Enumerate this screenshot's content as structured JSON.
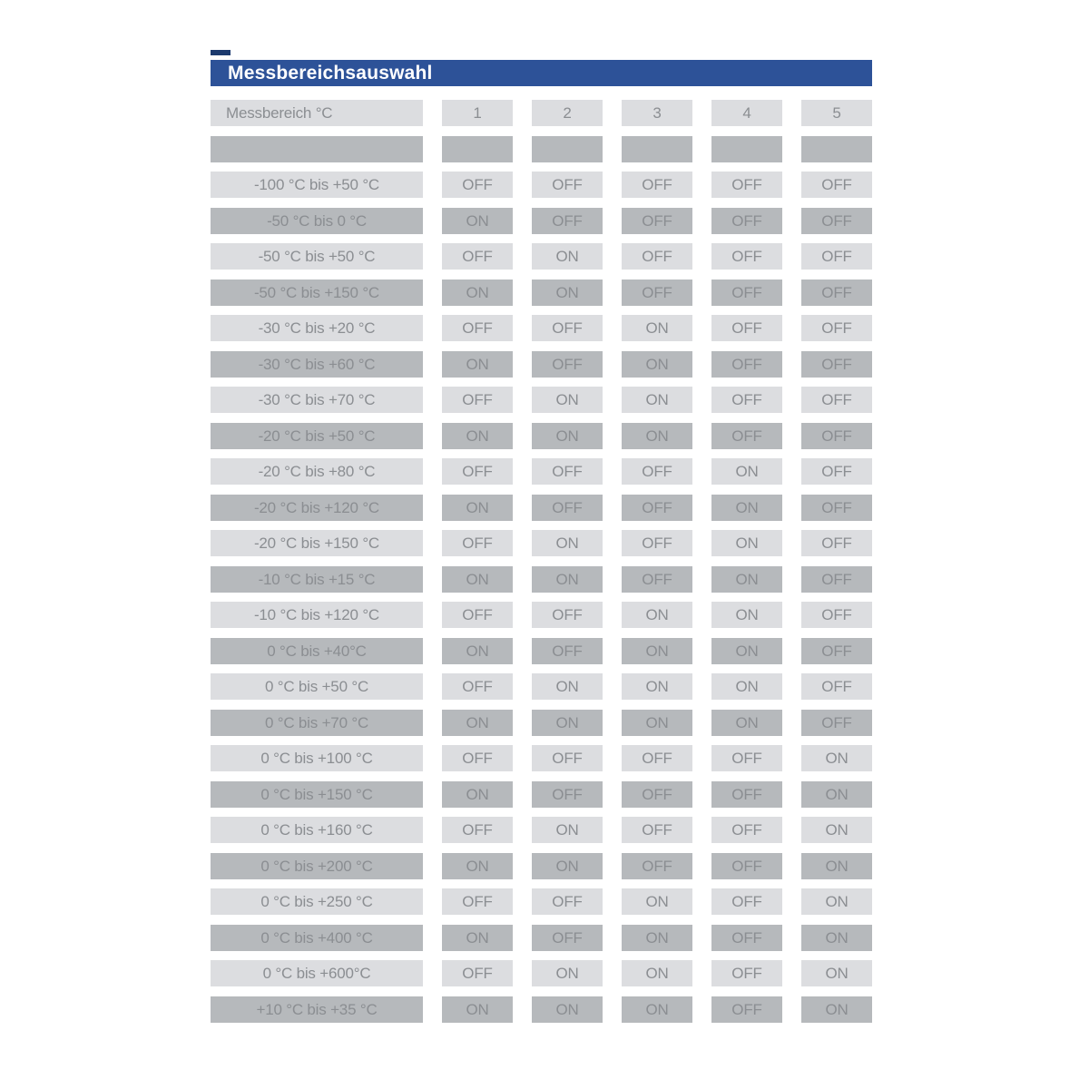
{
  "title": "Messbereichsauswahl",
  "table": {
    "header": {
      "label": "Messbereich °C",
      "columns": [
        "1",
        "2",
        "3",
        "4",
        "5"
      ]
    },
    "rows": [
      {
        "range": "-100 °C bis +50 °C",
        "switches": [
          "OFF",
          "OFF",
          "OFF",
          "OFF",
          "OFF"
        ]
      },
      {
        "range": "-50 °C bis 0 °C",
        "switches": [
          "ON",
          "OFF",
          "OFF",
          "OFF",
          "OFF"
        ]
      },
      {
        "range": "-50 °C bis +50 °C",
        "switches": [
          "OFF",
          "ON",
          "OFF",
          "OFF",
          "OFF"
        ]
      },
      {
        "range": "-50 °C bis +150 °C",
        "switches": [
          "ON",
          "ON",
          "OFF",
          "OFF",
          "OFF"
        ]
      },
      {
        "range": "-30 °C bis +20 °C",
        "switches": [
          "OFF",
          "OFF",
          "ON",
          "OFF",
          "OFF"
        ]
      },
      {
        "range": "-30 °C bis +60 °C",
        "switches": [
          "ON",
          "OFF",
          "ON",
          "OFF",
          "OFF"
        ]
      },
      {
        "range": "-30 °C bis +70 °C",
        "switches": [
          "OFF",
          "ON",
          "ON",
          "OFF",
          "OFF"
        ]
      },
      {
        "range": "-20 °C bis +50 °C",
        "switches": [
          "ON",
          "ON",
          "ON",
          "OFF",
          "OFF"
        ]
      },
      {
        "range": "-20 °C bis +80 °C",
        "switches": [
          "OFF",
          "OFF",
          "OFF",
          "ON",
          "OFF"
        ]
      },
      {
        "range": "-20 °C bis +120 °C",
        "switches": [
          "ON",
          "OFF",
          "OFF",
          "ON",
          "OFF"
        ]
      },
      {
        "range": "-20 °C bis +150 °C",
        "switches": [
          "OFF",
          "ON",
          "OFF",
          "ON",
          "OFF"
        ]
      },
      {
        "range": "-10 °C bis +15 °C",
        "switches": [
          "ON",
          "ON",
          "OFF",
          "ON",
          "OFF"
        ]
      },
      {
        "range": "-10 °C bis +120 °C",
        "switches": [
          "OFF",
          "OFF",
          "ON",
          "ON",
          "OFF"
        ]
      },
      {
        "range": "0 °C bis +40°C",
        "switches": [
          "ON",
          "OFF",
          "ON",
          "ON",
          "OFF"
        ]
      },
      {
        "range": "0 °C bis +50 °C",
        "switches": [
          "OFF",
          "ON",
          "ON",
          "ON",
          "OFF"
        ]
      },
      {
        "range": "0 °C bis +70 °C",
        "switches": [
          "ON",
          "ON",
          "ON",
          "ON",
          "OFF"
        ]
      },
      {
        "range": "0 °C bis +100 °C",
        "switches": [
          "OFF",
          "OFF",
          "OFF",
          "OFF",
          "ON"
        ]
      },
      {
        "range": "0 °C bis +150 °C",
        "switches": [
          "ON",
          "OFF",
          "OFF",
          "OFF",
          "ON"
        ]
      },
      {
        "range": "0 °C bis +160 °C",
        "switches": [
          "OFF",
          "ON",
          "OFF",
          "OFF",
          "ON"
        ]
      },
      {
        "range": "0 °C bis +200 °C",
        "switches": [
          "ON",
          "ON",
          "OFF",
          "OFF",
          "ON"
        ]
      },
      {
        "range": "0 °C bis +250 °C",
        "switches": [
          "OFF",
          "OFF",
          "ON",
          "OFF",
          "ON"
        ]
      },
      {
        "range": "0 °C bis +400 °C",
        "switches": [
          "ON",
          "OFF",
          "ON",
          "OFF",
          "ON"
        ]
      },
      {
        "range": "0 °C bis +600°C",
        "switches": [
          "OFF",
          "ON",
          "ON",
          "OFF",
          "ON"
        ]
      },
      {
        "range": "+10 °C bis +35 °C",
        "switches": [
          "ON",
          "ON",
          "ON",
          "OFF",
          "ON"
        ]
      }
    ]
  },
  "colors": {
    "header_bar": "#2d5298",
    "header_accent": "#1c3a6e",
    "row_light": "#dcdde0",
    "row_dark": "#b6b9bc",
    "text_gray": "#8b8e92",
    "title_text": "#ffffff"
  }
}
